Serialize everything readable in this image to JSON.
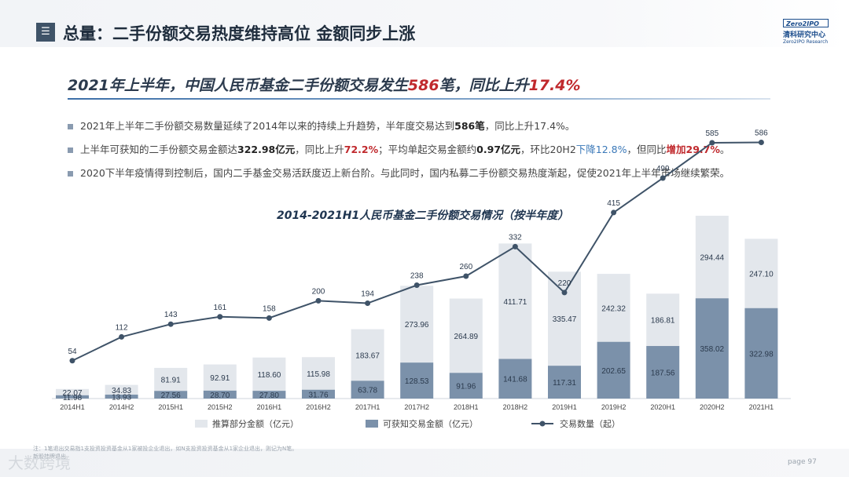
{
  "header": {
    "menu_icon": "menu-icon",
    "title": "总量：二手份额交易热度维持高位 金额同步上涨",
    "logo": {
      "top": "Zero2IPO",
      "cn": "清科研究中心",
      "en": "Zero2IPO Research"
    }
  },
  "headline": {
    "part1": "2021年上半年，中国人民币基金二手份额交易发生",
    "count": "586",
    "part2": "笔，同比上升",
    "pct": "17.4%"
  },
  "bullets": {
    "b1": {
      "t1": "2021年上半年二手份额交易数量延续了2014年以来的持续上升趋势，半年度交易达到",
      "t2": "586笔",
      "t3": "，同比上升17.4%。"
    },
    "b2": {
      "t1": "上半年可获知的二手份额交易金额达",
      "t2": "322.98亿元",
      "t3": "，同比上升",
      "t4": "72.2%",
      "t5": "；平均单起交易金额约",
      "t6": "0.97亿元",
      "t7": "，环比20H2",
      "t8": "下降12.8%",
      "t9": "，但同比",
      "t10": "增加29.7%",
      "t11": "。"
    },
    "b3": {
      "t1": "2020下半年疫情得到控制后，国内二手基金交易活跃度迈上新台阶。与此同时，国内私募二手份额交易热度渐起，促使2021年上半年市场继续繁荣。"
    }
  },
  "chart_title": "2014-2021H1人民币基金二手份额交易情况（按半年度）",
  "chart_data": {
    "type": "bar",
    "categories": [
      "2014H1",
      "2014H2",
      "2015H1",
      "2015H2",
      "2016H1",
      "2016H2",
      "2017H1",
      "2017H2",
      "2018H1",
      "2018H2",
      "2019H1",
      "2019H2",
      "2020H1",
      "2020H2",
      "2021H1"
    ],
    "series": [
      {
        "name": "可获知交易金额（亿元）",
        "kind": "bar-stack-bottom",
        "color": "#7b91aa",
        "values": [
          11.98,
          13.93,
          27.56,
          28.7,
          27.8,
          31.76,
          63.78,
          128.53,
          91.96,
          141.68,
          117.31,
          202.65,
          187.56,
          358.02,
          322.98
        ]
      },
      {
        "name": "推算部分金额（亿元）",
        "kind": "bar-stack-top",
        "color": "#e3e7ec",
        "values": [
          22.07,
          34.83,
          81.91,
          92.91,
          118.6,
          115.98,
          183.67,
          273.96,
          264.89,
          411.71,
          335.47,
          242.32,
          186.81,
          294.44,
          247.1
        ]
      },
      {
        "name": "交易数量（起）",
        "kind": "line",
        "color": "#3f5368",
        "values": [
          54,
          112,
          143,
          161,
          158,
          200,
          194,
          238,
          260,
          332,
          220,
          415,
          499,
          585,
          586
        ]
      }
    ],
    "legend": [
      "推算部分金额（亿元）",
      "可获知交易金额（亿元）",
      "交易数量（起）"
    ],
    "legend_position": "bottom",
    "bar_ylim": [
      0,
      560
    ],
    "line_ylim": [
      0,
      650
    ]
  },
  "footnote": {
    "line1": "注：1笔退出交易指1支投资投资基金从1家被投企业退出，如N支投资投资基金从1家企业退出，则记为N笔。",
    "line2": "新股挂牌退出"
  },
  "watermark": "大数跨境",
  "page_label": "page 97"
}
